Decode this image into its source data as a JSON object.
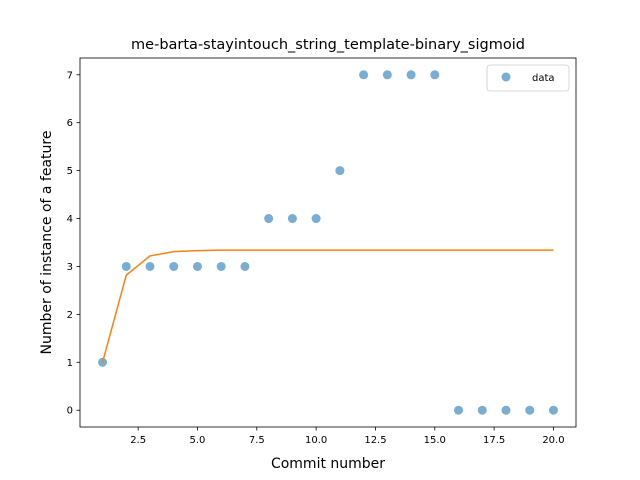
{
  "chart_data": {
    "type": "scatter",
    "title": "me-barta-stayintouch_string_template-binary_sigmoid",
    "xlabel": "Commit number",
    "ylabel": "Number of instance of a feature",
    "xlim": [
      0.05,
      20.95
    ],
    "ylim": [
      -0.35,
      7.35
    ],
    "xticks": [
      2.5,
      5.0,
      7.5,
      10.0,
      12.5,
      15.0,
      17.5,
      20.0
    ],
    "xtick_labels": [
      "2.5",
      "5.0",
      "7.5",
      "10.0",
      "12.5",
      "15.0",
      "17.5",
      "20.0"
    ],
    "yticks": [
      0,
      1,
      2,
      3,
      4,
      5,
      6,
      7
    ],
    "ytick_labels": [
      "0",
      "1",
      "2",
      "3",
      "4",
      "5",
      "6",
      "7"
    ],
    "grid": false,
    "legend_position": "top-right",
    "series": [
      {
        "name": "data",
        "kind": "scatter",
        "color": "#1f77b4",
        "x": [
          1,
          2,
          3,
          4,
          5,
          6,
          7,
          8,
          9,
          10,
          11,
          12,
          13,
          14,
          15,
          16,
          17,
          18,
          19,
          20
        ],
        "y": [
          1,
          3,
          3,
          3,
          3,
          3,
          3,
          4,
          4,
          4,
          5,
          7,
          7,
          7,
          7,
          0,
          0,
          0,
          0,
          0
        ]
      },
      {
        "kind": "line",
        "color": "#ff7f0e",
        "x": [
          1,
          2,
          3,
          4,
          5,
          6,
          7,
          8,
          9,
          10,
          11,
          12,
          13,
          14,
          15,
          16,
          17,
          18,
          19,
          20
        ],
        "y": [
          1.0,
          2.82,
          3.22,
          3.31,
          3.33,
          3.34,
          3.34,
          3.34,
          3.34,
          3.34,
          3.34,
          3.34,
          3.34,
          3.34,
          3.34,
          3.34,
          3.34,
          3.34,
          3.34,
          3.34
        ]
      }
    ]
  }
}
